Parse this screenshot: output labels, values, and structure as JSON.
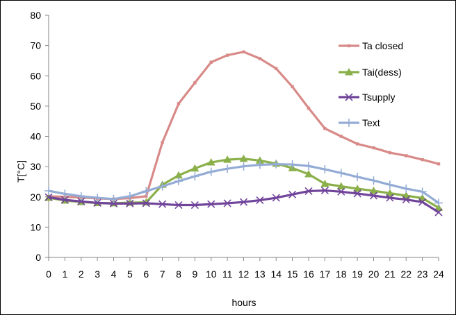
{
  "chart_data": {
    "type": "line",
    "title": "",
    "xlabel": "hours",
    "ylabel": "T[°C]",
    "x": [
      0,
      1,
      2,
      3,
      4,
      5,
      6,
      7,
      8,
      9,
      10,
      11,
      12,
      13,
      14,
      15,
      16,
      17,
      18,
      19,
      20,
      21,
      22,
      23,
      24
    ],
    "xlim": [
      0,
      24
    ],
    "ylim": [
      0,
      80
    ],
    "yticks": [
      0,
      10,
      20,
      30,
      40,
      50,
      60,
      70,
      80
    ],
    "grid": false,
    "legend_position": "right",
    "series": [
      {
        "name": "Ta closed",
        "color": "#D88A88",
        "marker": "square",
        "values": [
          20.2,
          20.0,
          19.8,
          19.5,
          19.3,
          19.6,
          20.2,
          38.0,
          50.8,
          57.7,
          64.5,
          66.8,
          67.9,
          65.7,
          62.4,
          56.4,
          49.3,
          42.6,
          40.0,
          37.5,
          36.2,
          34.6,
          33.6,
          32.3,
          30.9
        ]
      },
      {
        "name": "Tai(dess)",
        "color": "#8BB04A",
        "marker": "triangle",
        "values": [
          19.7,
          18.8,
          18.3,
          18.0,
          17.9,
          18.1,
          18.2,
          24.0,
          27.1,
          29.4,
          31.4,
          32.3,
          32.6,
          32.0,
          31.0,
          29.5,
          27.5,
          24.3,
          23.5,
          22.7,
          22.0,
          21.2,
          20.4,
          19.6,
          16.4
        ]
      },
      {
        "name": "Tsupply",
        "color": "#70449A",
        "marker": "x",
        "values": [
          19.9,
          19.0,
          18.5,
          18.0,
          17.8,
          17.8,
          17.9,
          17.6,
          17.3,
          17.3,
          17.6,
          17.9,
          18.3,
          18.9,
          19.7,
          20.8,
          21.9,
          22.1,
          21.7,
          21.1,
          20.4,
          19.7,
          19.1,
          18.3,
          14.9
        ]
      },
      {
        "name": "Text",
        "color": "#94ACD5",
        "marker": "plus",
        "values": [
          22.0,
          21.0,
          20.2,
          19.7,
          19.3,
          20.2,
          21.9,
          23.5,
          25.2,
          26.8,
          28.3,
          29.3,
          30.1,
          30.6,
          30.8,
          30.7,
          30.2,
          29.1,
          27.9,
          26.6,
          25.4,
          24.0,
          22.7,
          21.7,
          18.0
        ]
      }
    ]
  }
}
